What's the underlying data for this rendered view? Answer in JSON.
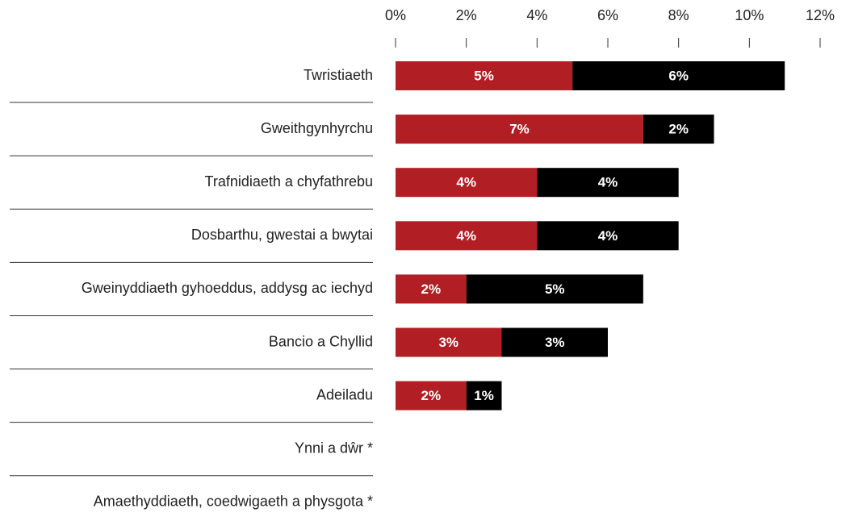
{
  "chart_data": {
    "type": "stacked-bar-horizontal",
    "categories": [
      "Twristiaeth",
      "Gweithgynhyrchu",
      "Trafnidiaeth a chyfathrebu",
      "Dosbarthu, gwestai a bwytai",
      "Gweinyddiaeth gyhoeddus, addysg ac iechyd",
      "Bancio a Chyllid",
      "Adeiladu",
      "Ynni a dŵr *",
      "Amaethyddiaeth, coedwigaeth a physgota *"
    ],
    "series": [
      {
        "color": "#b11f24",
        "values": [
          5,
          7,
          4,
          4,
          2,
          3,
          2,
          null,
          null
        ],
        "value_labels": [
          "5%",
          "7%",
          "4%",
          "4%",
          "2%",
          "3%",
          "2%",
          null,
          null
        ]
      },
      {
        "color": "#000000",
        "values": [
          6,
          2,
          4,
          4,
          5,
          3,
          1,
          null,
          null
        ],
        "value_labels": [
          "6%",
          "2%",
          "4%",
          "4%",
          "5%",
          "3%",
          "1%",
          null,
          null
        ]
      }
    ],
    "xlim": [
      0,
      12
    ],
    "xticks": [
      {
        "value": 0,
        "label": "0%"
      },
      {
        "value": 2,
        "label": "2%"
      },
      {
        "value": 4,
        "label": "4%"
      },
      {
        "value": 6,
        "label": "6%"
      },
      {
        "value": 8,
        "label": "8%"
      },
      {
        "value": 10,
        "label": "10%"
      },
      {
        "value": 12,
        "label": "12%"
      }
    ],
    "grid": false
  }
}
